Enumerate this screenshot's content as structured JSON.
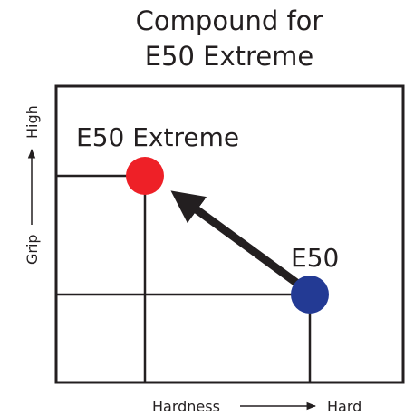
{
  "title": [
    "Compound for",
    "E50 Extreme"
  ],
  "nodes": [
    {
      "label": "E50 Extreme",
      "color": "#ee2027"
    },
    {
      "label": "E50",
      "color": "#233a94"
    }
  ],
  "x_axis": {
    "label": "Hardness",
    "end_label": "Hard"
  },
  "y_axis": {
    "label": "Grip",
    "end_label": "High"
  }
}
